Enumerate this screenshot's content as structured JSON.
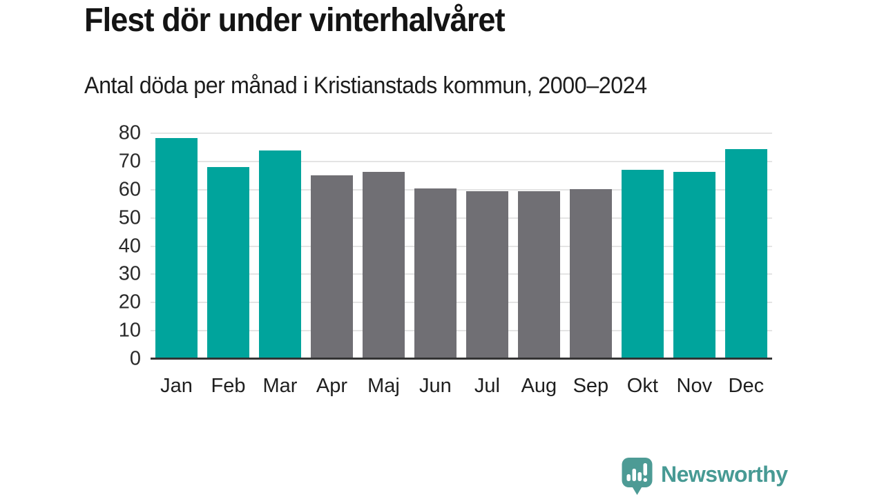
{
  "title": "Flest dör under vinterhalvåret",
  "subtitle": "Antal döda per månad i Kristianstads kommun, 2000–2024",
  "chart_data": {
    "type": "bar",
    "title": "Flest dör under vinterhalvåret",
    "subtitle": "Antal döda per månad i Kristianstads kommun, 2000–2024",
    "categories": [
      "Jan",
      "Feb",
      "Mar",
      "Apr",
      "Maj",
      "Jun",
      "Jul",
      "Aug",
      "Sep",
      "Okt",
      "Nov",
      "Dec"
    ],
    "values": [
      78.4,
      68.0,
      74.0,
      65.0,
      66.3,
      60.5,
      59.4,
      59.4,
      60.3,
      67.0,
      66.4,
      74.4
    ],
    "groups": [
      "winter",
      "winter",
      "winter",
      "summer",
      "summer",
      "summer",
      "summer",
      "summer",
      "summer",
      "winter",
      "winter",
      "winter"
    ],
    "group_colors": {
      "winter": "#00a49c",
      "summer": "#706f74"
    },
    "xlabel": "",
    "ylabel": "",
    "ylim": [
      0,
      80
    ],
    "yticks": [
      0,
      10,
      20,
      30,
      40,
      50,
      60,
      70,
      80
    ],
    "grid": true,
    "legend": "none",
    "gridline_color": "#e4e4e4",
    "baseline_color": "#333333"
  },
  "footer": {
    "brand": "Newsworthy",
    "logo_icon": "newsworthy-speech-bubble-barchart-icon",
    "brand_color": "#479a94",
    "logo_fill": "#4d9b95"
  }
}
